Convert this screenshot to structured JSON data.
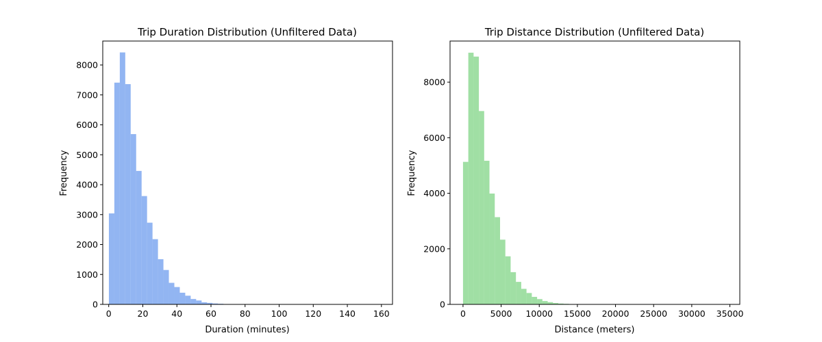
{
  "chart_data": [
    {
      "type": "bar",
      "title": "Trip Duration Distribution (Unfiltered Data)",
      "xlabel": "Duration (minutes)",
      "ylabel": "Frequency",
      "xlim": [
        -3.5,
        166.5
      ],
      "ylim": [
        0,
        8800
      ],
      "xticks": [
        0,
        20,
        40,
        60,
        80,
        100,
        120,
        140,
        160
      ],
      "yticks": [
        0,
        1000,
        2000,
        3000,
        4000,
        5000,
        6000,
        7000,
        8000
      ],
      "grid": false,
      "color": "#6495ED",
      "bin_start": 0.1,
      "bin_width": 3.2,
      "values": [
        3040,
        7410,
        8420,
        7360,
        5690,
        4460,
        3620,
        2730,
        2180,
        1510,
        1150,
        720,
        580,
        390,
        290,
        180,
        130,
        70,
        50,
        30,
        20,
        10,
        8,
        6,
        5,
        4,
        3,
        3,
        2,
        2,
        2,
        1,
        1,
        1,
        1,
        1,
        1,
        1,
        1,
        1,
        1,
        1,
        1,
        1,
        1,
        1,
        1,
        1,
        1,
        1
      ]
    },
    {
      "type": "bar",
      "title": "Trip Distance Distribution (Unfiltered Data)",
      "xlabel": "Distance (meters)",
      "ylabel": "Frequency",
      "xlim": [
        -1700,
        36300
      ],
      "ylim": [
        0,
        9480
      ],
      "xticks": [
        0,
        5000,
        10000,
        15000,
        20000,
        25000,
        30000,
        35000
      ],
      "yticks": [
        0,
        2000,
        4000,
        6000,
        8000
      ],
      "grid": false,
      "color": "#77D17D",
      "bin_start": 0,
      "bin_width": 694,
      "values": [
        5130,
        9060,
        8920,
        6960,
        5170,
        3990,
        3140,
        2330,
        1730,
        1160,
        810,
        560,
        410,
        270,
        190,
        120,
        80,
        50,
        30,
        20,
        10,
        8,
        6,
        5,
        4,
        3,
        2,
        2,
        2,
        1,
        1,
        1,
        1,
        1,
        1,
        1,
        1,
        1,
        1,
        1,
        1,
        1,
        1,
        1,
        1,
        1,
        1,
        1,
        1,
        1
      ]
    }
  ]
}
